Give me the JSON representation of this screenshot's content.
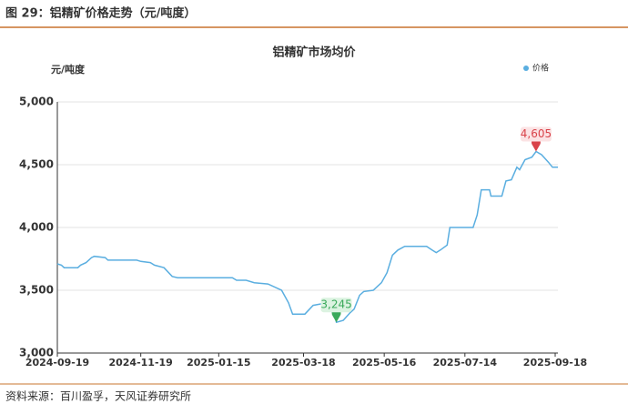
{
  "header": {
    "title": "图 29：铝精矿价格走势（元/吨度）"
  },
  "footer": {
    "source": "资料来源：百川盈孚，天风证券研究所"
  },
  "chart_data": {
    "type": "line",
    "title": "铝精矿市场均价",
    "y_label": "元/吨度",
    "x": [
      "2024-09-19",
      "2024-09-22",
      "2024-09-24",
      "2024-10-04",
      "2024-10-06",
      "2024-10-10",
      "2024-10-14",
      "2024-10-16",
      "2024-10-24",
      "2024-10-26",
      "2024-11-16",
      "2024-11-19",
      "2024-11-26",
      "2024-11-29",
      "2024-12-06",
      "2024-12-12",
      "2024-12-16",
      "2025-01-25",
      "2025-01-28",
      "2025-02-04",
      "2025-02-10",
      "2025-02-20",
      "2025-03-02",
      "2025-03-07",
      "2025-03-10",
      "2025-03-19",
      "2025-03-25",
      "2025-04-04",
      "2025-04-10",
      "2025-04-11",
      "2025-04-16",
      "2025-04-21",
      "2025-04-24",
      "2025-04-28",
      "2025-05-01",
      "2025-05-08",
      "2025-05-14",
      "2025-05-18",
      "2025-05-22",
      "2025-05-26",
      "2025-05-31",
      "2025-06-16",
      "2025-06-20",
      "2025-06-23",
      "2025-06-26",
      "2025-07-01",
      "2025-07-03",
      "2025-07-20",
      "2025-07-23",
      "2025-07-26",
      "2025-08-01",
      "2025-08-02",
      "2025-08-10",
      "2025-08-13",
      "2025-08-17",
      "2025-08-21",
      "2025-08-23",
      "2025-08-27",
      "2025-09-01",
      "2025-09-04",
      "2025-09-08",
      "2025-09-13",
      "2025-09-16",
      "2025-09-20"
    ],
    "series": [
      {
        "name": "价格",
        "color": "#5aaee0",
        "values": [
          3710,
          3700,
          3680,
          3680,
          3700,
          3720,
          3760,
          3770,
          3760,
          3740,
          3740,
          3730,
          3720,
          3700,
          3680,
          3610,
          3600,
          3600,
          3580,
          3580,
          3560,
          3550,
          3500,
          3400,
          3310,
          3310,
          3380,
          3400,
          3290,
          3245,
          3260,
          3320,
          3350,
          3460,
          3490,
          3500,
          3560,
          3640,
          3780,
          3820,
          3850,
          3850,
          3820,
          3800,
          3820,
          3860,
          4000,
          4000,
          4100,
          4300,
          4300,
          4250,
          4250,
          4370,
          4380,
          4480,
          4460,
          4540,
          4560,
          4605,
          4580,
          4520,
          4480,
          4480
        ],
        "value_labels": [
          null,
          null,
          null,
          null,
          null,
          null,
          null,
          null,
          null,
          null,
          null,
          null,
          null,
          null,
          null,
          null,
          null,
          null,
          null,
          null,
          null,
          null,
          null,
          null,
          null,
          null,
          null,
          null,
          null,
          "3,245",
          null,
          null,
          null,
          null,
          null,
          null,
          null,
          null,
          null,
          null,
          null,
          null,
          null,
          null,
          null,
          null,
          null,
          null,
          null,
          null,
          null,
          null,
          null,
          null,
          null,
          null,
          null,
          null,
          null,
          "4,605",
          null,
          null,
          null,
          null
        ]
      }
    ],
    "xlim": [
      "2024-09-19",
      "2025-09-20"
    ],
    "xticks": [
      "2024-09-19",
      "2024-11-19",
      "2025-01-15",
      "2025-03-18",
      "2025-05-16",
      "2025-07-14",
      "2025-09-18"
    ],
    "ylim": [
      3000,
      5000
    ],
    "yticks": [
      {
        "value": 3000,
        "label": "3,000"
      },
      {
        "value": 3500,
        "label": "3,500"
      },
      {
        "value": 4000,
        "label": "4,000"
      },
      {
        "value": 4500,
        "label": "4,500"
      },
      {
        "value": 5000,
        "label": "5,000"
      }
    ],
    "grid": true,
    "legend": "top-right"
  }
}
